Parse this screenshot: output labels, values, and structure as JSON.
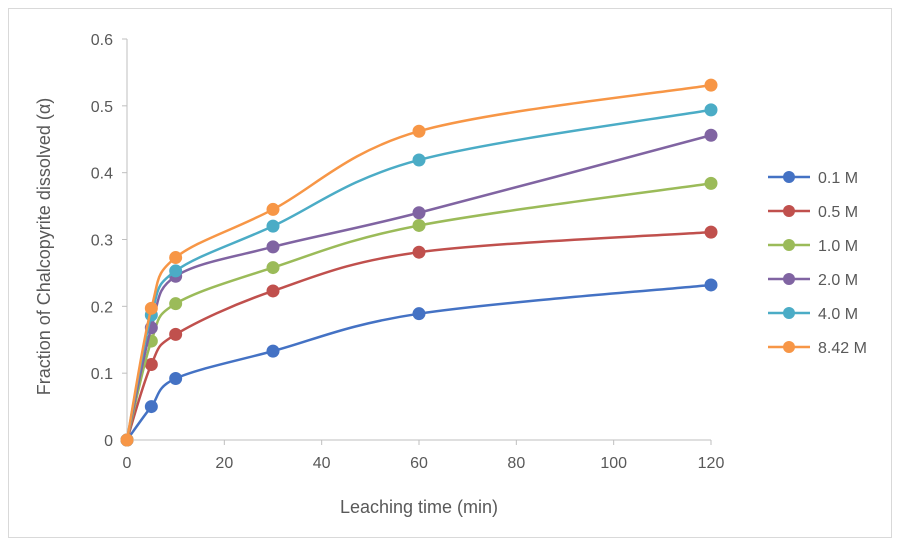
{
  "chart_data": {
    "type": "line",
    "title": "",
    "xlabel": "Leaching time (min)",
    "ylabel": "Fraction of Chalcopyrite dissolved (α)",
    "xlim": [
      0,
      120
    ],
    "ylim": [
      0,
      0.6
    ],
    "xticks": [
      0,
      20,
      40,
      60,
      80,
      100,
      120
    ],
    "yticks": [
      0,
      0.1,
      0.2,
      0.3,
      0.4,
      0.5,
      0.6
    ],
    "xtick_labels": [
      "0",
      "20",
      "40",
      "60",
      "80",
      "100",
      "120"
    ],
    "ytick_labels": [
      "0",
      "0.1",
      "0.2",
      "0.3",
      "0.4",
      "0.5",
      "0.6"
    ],
    "grid": false,
    "smooth": true,
    "legend_position": "right",
    "x": [
      0,
      5,
      10,
      30,
      60,
      120
    ],
    "series": [
      {
        "name": "0.1 M",
        "color": "#4472c4",
        "values": [
          0,
          0.05,
          0.092,
          0.133,
          0.189,
          0.232
        ]
      },
      {
        "name": "0.5 M",
        "color": "#c0504d",
        "values": [
          0,
          0.113,
          0.158,
          0.223,
          0.281,
          0.311
        ]
      },
      {
        "name": "1.0 M",
        "color": "#9bbb59",
        "values": [
          0,
          0.148,
          0.204,
          0.258,
          0.321,
          0.384
        ]
      },
      {
        "name": "2.0 M",
        "color": "#8064a2",
        "values": [
          0,
          0.168,
          0.245,
          0.289,
          0.34,
          0.456
        ]
      },
      {
        "name": "4.0 M",
        "color": "#4bacc6",
        "values": [
          0,
          0.187,
          0.253,
          0.32,
          0.419,
          0.494
        ]
      },
      {
        "name": "8.42 M",
        "color": "#f79646",
        "values": [
          0,
          0.197,
          0.273,
          0.345,
          0.462,
          0.531
        ]
      }
    ]
  }
}
